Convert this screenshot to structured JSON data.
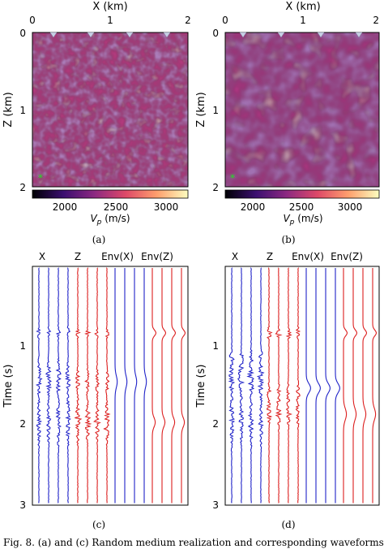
{
  "panels": {
    "a": {
      "caption": "(a)",
      "x_title": "X (km)",
      "x_ticks": [
        "0",
        "1",
        "2"
      ],
      "y_title": "Z (km)",
      "y_ticks": [
        "0",
        "1",
        "2"
      ],
      "colorbar_ticks": [
        "2000",
        "2500",
        "3000"
      ],
      "colorbar_label_main": "V",
      "colorbar_label_sub": "p",
      "colorbar_label_unit": " (m/s)",
      "source_marker": "*"
    },
    "b": {
      "caption": "(b)",
      "x_title": "X (km)",
      "x_ticks": [
        "0",
        "1",
        "2"
      ],
      "y_title": "Z (km)",
      "y_ticks": [
        "0",
        "1",
        "2"
      ],
      "colorbar_ticks": [
        "2000",
        "2500",
        "3000"
      ],
      "colorbar_label_main": "V",
      "colorbar_label_sub": "p",
      "colorbar_label_unit": " (m/s)",
      "source_marker": "*"
    },
    "c": {
      "caption": "(c)",
      "group_labels": [
        "X",
        "Z",
        "Env(X)",
        "Env(Z)"
      ],
      "y_title": "Time (s)",
      "y_ticks": [
        "1",
        "2",
        "3"
      ]
    },
    "d": {
      "caption": "(d)",
      "group_labels": [
        "X",
        "Z",
        "Env(X)",
        "Env(Z)"
      ],
      "y_title": "Time (s)",
      "y_ticks": [
        "1",
        "2",
        "3"
      ]
    }
  },
  "figure_caption": "Fig. 8.  (a) and (c) Random medium realization and corresponding waveforms",
  "colors": {
    "x_component": "#1f22c8",
    "z_component": "#dc1e1e",
    "source_star": "#22dd22",
    "receiver_triangle": "#c8d0e6",
    "colormap": [
      "#000004",
      "#3b0f70",
      "#8c2981",
      "#de4968",
      "#fe9f6d",
      "#fcfdbf"
    ]
  }
}
